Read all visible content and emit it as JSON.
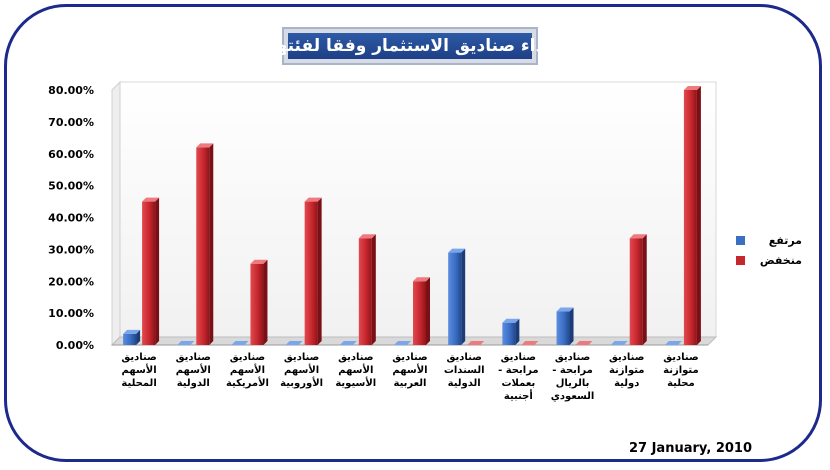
{
  "title": "اداء صناديق الاستثمار وفقا لفئتها",
  "date": "27 January, 2010",
  "colors": {
    "rise": "#3b6fc4",
    "fall": "#c8262e",
    "frame": "#1d2a8c",
    "title_bg": "#2b56a3"
  },
  "legend": [
    {
      "label": "مرتفع",
      "color_key": "rise"
    },
    {
      "label": "منخفض",
      "color_key": "fall"
    }
  ],
  "chart_data": {
    "type": "bar",
    "title": "اداء صناديق الاستثمار وفقا لفئتها",
    "xlabel": "",
    "ylabel": "",
    "ylim": [
      0,
      80
    ],
    "y_ticks": [
      "0.00%",
      "10.00%",
      "20.00%",
      "30.00%",
      "40.00%",
      "50.00%",
      "60.00%",
      "70.00%",
      "80.00%"
    ],
    "y_tick_values": [
      0,
      10,
      20,
      30,
      40,
      50,
      60,
      70,
      80
    ],
    "grid": false,
    "legend_position": "right",
    "categories": [
      [
        "صناديق",
        "الأسهم",
        "المحلية"
      ],
      [
        "صناديق",
        "الأسهم",
        "الدولية"
      ],
      [
        "صناديق",
        "الأسهم",
        "الأمريكية"
      ],
      [
        "صناديق",
        "الأسهم",
        "الأوروبية"
      ],
      [
        "صناديق",
        "الأسهم",
        "الأسيوية"
      ],
      [
        "صناديق",
        "الأسهم",
        "العربية"
      ],
      [
        "صناديق",
        "السندات",
        "الدولية"
      ],
      [
        "صناديق",
        "مرابحة -",
        "بعملات",
        "أجنبية"
      ],
      [
        "صناديق",
        "مرابحة -",
        "بالريال",
        "السعودي"
      ],
      [
        "صناديق",
        "متوازنة",
        "دولية"
      ],
      [
        "صناديق",
        "متوازنة",
        "محلية"
      ]
    ],
    "series": [
      {
        "name": "مرتفع",
        "values": [
          3.5,
          0,
          0,
          0,
          0,
          0,
          29,
          7,
          10.5,
          0,
          0
        ]
      },
      {
        "name": "منخفض",
        "values": [
          45,
          62,
          25.5,
          45,
          33.5,
          20,
          0,
          0,
          0,
          33.5,
          80
        ]
      }
    ]
  }
}
